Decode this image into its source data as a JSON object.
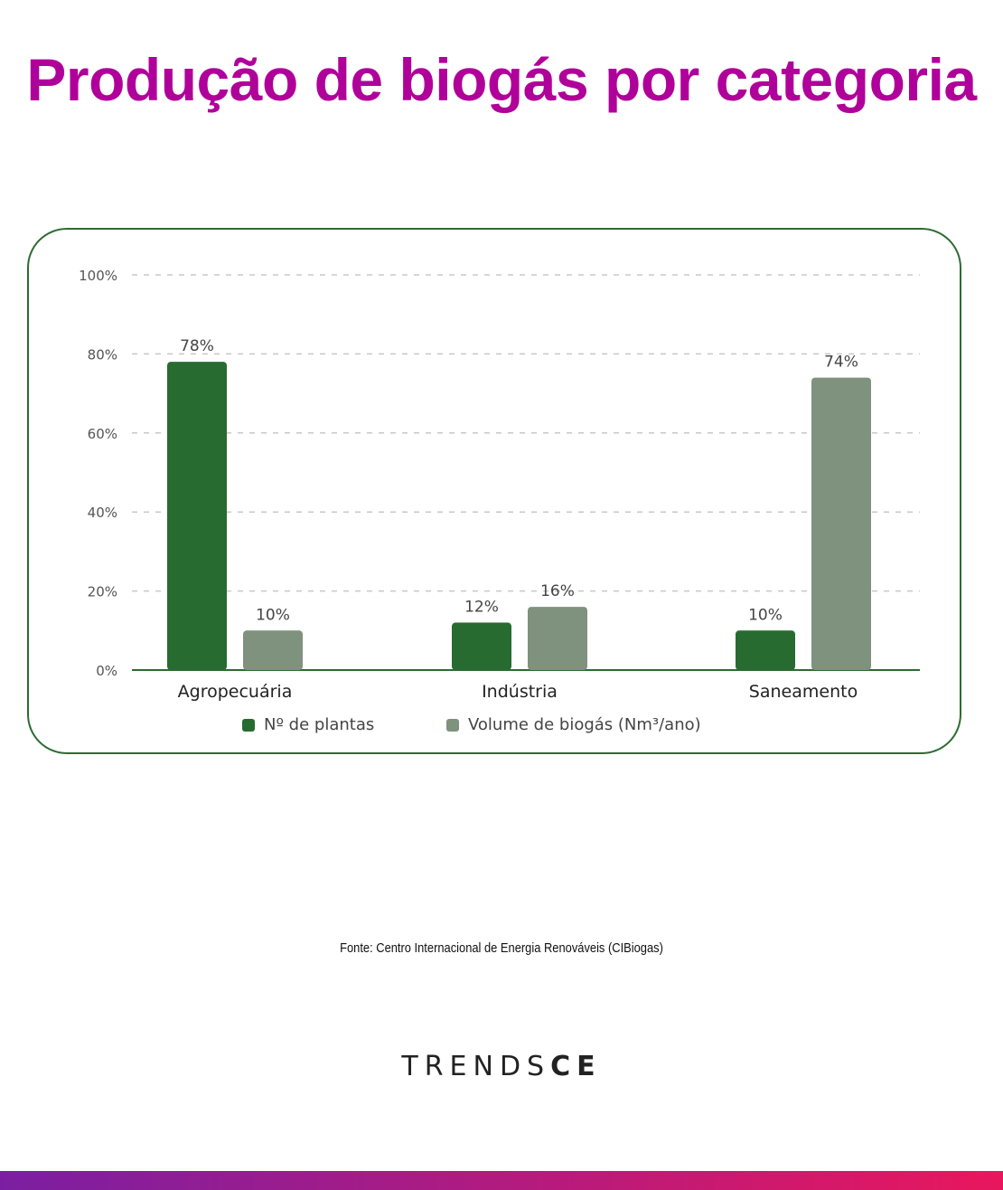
{
  "title": "Produção de biogás por categoria",
  "colors": {
    "title": "#b0009a",
    "frame": "#2d6b33",
    "series1": "#276b30",
    "series2": "#7e927e",
    "grid": "#c8c8c8",
    "axis": "#2d6b33",
    "text": "#333333",
    "bar_gradient_start": "#7b1fa2",
    "bar_gradient_end": "#e8175d"
  },
  "chart_data": {
    "type": "bar",
    "categories": [
      "Agropecuária",
      "Indústria",
      "Saneamento"
    ],
    "series": [
      {
        "name": "Nº de plantas",
        "values": [
          78,
          12,
          10
        ],
        "labels": [
          "78%",
          "12%",
          "10%"
        ]
      },
      {
        "name": "Volume de biogás (Nm³/ano)",
        "values": [
          10,
          16,
          74
        ],
        "labels": [
          "10%",
          "16%",
          "74%"
        ]
      }
    ],
    "yticks": [
      "0%",
      "20%",
      "40%",
      "60%",
      "80%",
      "100%"
    ],
    "ylim": [
      0,
      100
    ],
    "grid": true,
    "legend_position": "bottom"
  },
  "source": "Fonte: Centro Internacional de Energia Renováveis (CIBiogas)",
  "brand": {
    "light": "TRENDS",
    "bold": "CE"
  }
}
